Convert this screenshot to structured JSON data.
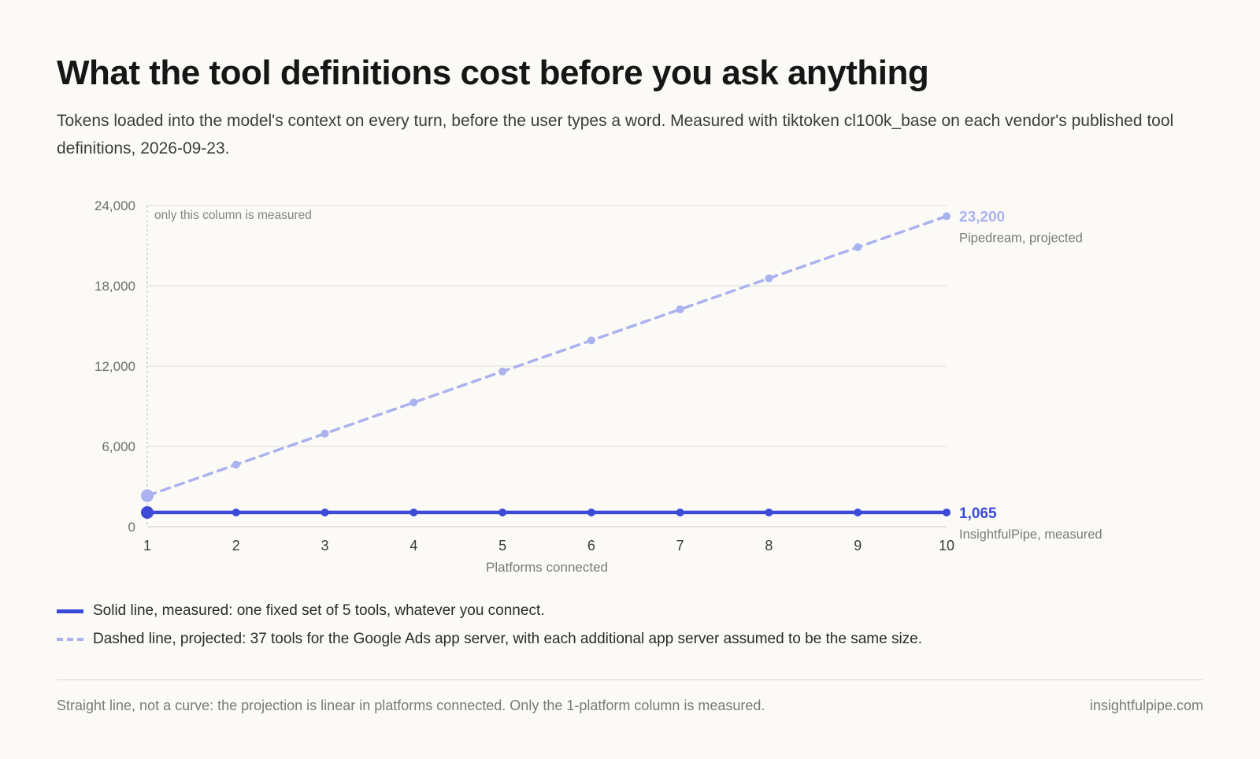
{
  "title": "What the tool definitions cost before you ask anything",
  "subtitle": "Tokens loaded into the model's context on every turn, before the user types a word. Measured with tiktoken cl100k_base on each vendor's published tool definitions, 2026-09-23.",
  "chart_data": {
    "type": "line",
    "x": [
      1,
      2,
      3,
      4,
      5,
      6,
      7,
      8,
      9,
      10
    ],
    "xlabel": "Platforms connected",
    "ylabel": "",
    "ylim": [
      0,
      24000
    ],
    "yticks": [
      0,
      6000,
      12000,
      18000,
      24000
    ],
    "ytick_labels": [
      "0",
      "6,000",
      "12,000",
      "18,000",
      "24,000"
    ],
    "xtick_labels": [
      "1",
      "2",
      "3",
      "4",
      "5",
      "6",
      "7",
      "8",
      "9",
      "10"
    ],
    "grid": true,
    "annotation": "only this column is measured",
    "series": [
      {
        "name": "Pipedream, projected",
        "style": "dashed",
        "color": "#aab2ef",
        "values": [
          2320,
          4640,
          6960,
          9280,
          11600,
          13920,
          16240,
          18560,
          20880,
          23200
        ],
        "end_label": "23,200"
      },
      {
        "name": "InsightfulPipe, measured",
        "style": "solid",
        "color": "#3b4bd8",
        "values": [
          1065,
          1065,
          1065,
          1065,
          1065,
          1065,
          1065,
          1065,
          1065,
          1065
        ],
        "end_label": "1,065"
      }
    ]
  },
  "legend": {
    "solid": "Solid line, measured: one fixed set of 5 tools, whatever you connect.",
    "dashed": "Dashed line, projected: 37 tools for the Google Ads app server, with each additional app server assumed to be the same size."
  },
  "footer": {
    "note": "Straight line, not a curve: the projection is linear in platforms connected. Only the 1-platform column is measured.",
    "site": "insightfulpipe.com"
  }
}
